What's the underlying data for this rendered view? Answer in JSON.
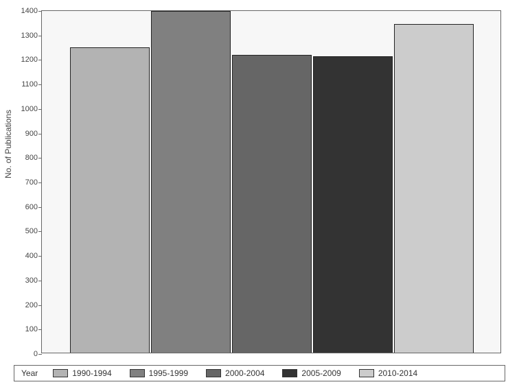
{
  "chart": {
    "type": "bar",
    "ylabel": "No. of Publications",
    "ylabel_fontsize": 12,
    "tick_fontsize": 11,
    "legend_fontsize": 12,
    "legend_title": "Year",
    "background_color": "#f7f7f7",
    "plot_bgcolor": "#ffffff",
    "border_color": "#666666",
    "text_color": "#444444",
    "ylim": [
      0,
      1400
    ],
    "ytick_step": 100,
    "yticks": [
      0,
      100,
      200,
      300,
      400,
      500,
      600,
      700,
      800,
      900,
      1000,
      1100,
      1200,
      1300,
      1400
    ],
    "bar_width": 0.98,
    "categories": [
      "1990-1994",
      "1995-1999",
      "2000-2004",
      "2005-2009",
      "2010-2014"
    ],
    "values": [
      1245,
      1395,
      1215,
      1210,
      1340
    ],
    "bar_colors": [
      "#b3b3b3",
      "#808080",
      "#666666",
      "#333333",
      "#cccccc"
    ],
    "bar_border": "#222222"
  }
}
